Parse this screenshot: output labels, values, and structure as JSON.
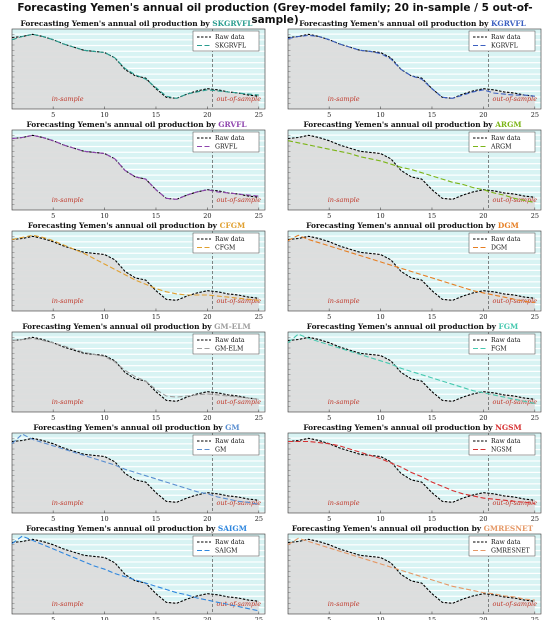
{
  "suptitle": "Forecasting Yemen's annual oil production (Grey-model family; 20 in-sample / 5 out-of-sample)",
  "colors": {
    "raw": "#000000",
    "fill": "#dcdcdc",
    "band": "#d8f3f3",
    "split": "#555555",
    "sample_text": "#c0392b"
  },
  "chart_data": [
    {
      "type": "line",
      "title_prefix": "Forecasting Yemen's annual oil production by ",
      "model": "SKGRVFL",
      "model_color": "#2a9d8f",
      "legend": [
        "Raw data",
        "SKGRVFL"
      ],
      "x": [
        1,
        2,
        3,
        4,
        5,
        6,
        7,
        8,
        9,
        10,
        11,
        12,
        13,
        14,
        15,
        16,
        17,
        18,
        19,
        20,
        21,
        22,
        23,
        24,
        25
      ],
      "raw": [
        9.2,
        9.3,
        9.5,
        9.3,
        9.0,
        8.6,
        8.3,
        8.0,
        7.9,
        7.8,
        7.3,
        6.2,
        5.6,
        5.4,
        4.4,
        3.6,
        3.5,
        3.9,
        4.2,
        4.4,
        4.3,
        4.1,
        4.0,
        3.8,
        3.7
      ],
      "model_values": [
        9.0,
        9.3,
        9.5,
        9.3,
        9.0,
        8.6,
        8.3,
        8.0,
        7.9,
        7.8,
        7.3,
        6.3,
        5.7,
        5.3,
        4.5,
        3.7,
        3.5,
        3.9,
        4.1,
        4.3,
        4.2,
        4.1,
        4.0,
        3.9,
        3.8
      ],
      "split": 20.5,
      "xlim": [
        1,
        25.6
      ],
      "ylim": [
        2.5,
        10
      ],
      "annotations": [
        "in-sample",
        "out-of-sample"
      ]
    },
    {
      "type": "line",
      "title_prefix": "Forecasting Yemen's annual oil production by ",
      "model": "KGRVFL",
      "model_color": "#3b5fc0",
      "legend": [
        "Raw data",
        "KGRVFL"
      ],
      "x": [
        1,
        2,
        3,
        4,
        5,
        6,
        7,
        8,
        9,
        10,
        11,
        12,
        13,
        14,
        15,
        16,
        17,
        18,
        19,
        20,
        21,
        22,
        23,
        24,
        25
      ],
      "raw": [
        9.2,
        9.3,
        9.5,
        9.3,
        9.0,
        8.6,
        8.3,
        8.0,
        7.9,
        7.8,
        7.3,
        6.2,
        5.6,
        5.4,
        4.4,
        3.6,
        3.5,
        3.9,
        4.2,
        4.4,
        4.3,
        4.1,
        4.0,
        3.8,
        3.7
      ],
      "model_values": [
        9.1,
        9.3,
        9.4,
        9.3,
        9.0,
        8.6,
        8.3,
        8.0,
        7.9,
        7.7,
        7.2,
        6.2,
        5.6,
        5.3,
        4.4,
        3.6,
        3.5,
        3.8,
        4.1,
        4.3,
        4.0,
        3.9,
        3.8,
        3.8,
        3.7
      ],
      "split": 20.5,
      "xlim": [
        1,
        25.6
      ],
      "ylim": [
        2.5,
        10
      ],
      "annotations": [
        "in-sample",
        "out-of-sample"
      ]
    },
    {
      "type": "line",
      "title_prefix": "Forecasting Yemen's annual oil production by ",
      "model": "GRVFL",
      "model_color": "#8e44ad",
      "legend": [
        "Raw data",
        "GRVFL"
      ],
      "x": [
        1,
        2,
        3,
        4,
        5,
        6,
        7,
        8,
        9,
        10,
        11,
        12,
        13,
        14,
        15,
        16,
        17,
        18,
        19,
        20,
        21,
        22,
        23,
        24,
        25
      ],
      "raw": [
        9.2,
        9.3,
        9.5,
        9.3,
        9.0,
        8.6,
        8.3,
        8.0,
        7.9,
        7.8,
        7.3,
        6.2,
        5.6,
        5.4,
        4.4,
        3.6,
        3.5,
        3.9,
        4.2,
        4.4,
        4.3,
        4.1,
        4.0,
        3.8,
        3.7
      ],
      "model_values": [
        9.2,
        9.3,
        9.5,
        9.3,
        9.0,
        8.6,
        8.3,
        8.0,
        7.9,
        7.8,
        7.3,
        6.2,
        5.6,
        5.4,
        4.4,
        3.6,
        3.5,
        3.9,
        4.2,
        4.4,
        4.2,
        4.1,
        4.0,
        3.9,
        3.8
      ],
      "split": 20.5,
      "xlim": [
        1,
        25.6
      ],
      "ylim": [
        2.5,
        10
      ],
      "annotations": [
        "in-sample",
        "out-of-sample"
      ]
    },
    {
      "type": "line",
      "title_prefix": "Forecasting Yemen's annual oil production by ",
      "model": "ARGM",
      "model_color": "#7cb518",
      "legend": [
        "Raw data",
        "ARGM"
      ],
      "x": [
        1,
        2,
        3,
        4,
        5,
        6,
        7,
        8,
        9,
        10,
        11,
        12,
        13,
        14,
        15,
        16,
        17,
        18,
        19,
        20,
        21,
        22,
        23,
        24,
        25
      ],
      "raw": [
        9.2,
        9.3,
        9.5,
        9.3,
        9.0,
        8.6,
        8.3,
        8.0,
        7.9,
        7.8,
        7.3,
        6.2,
        5.6,
        5.4,
        4.4,
        3.6,
        3.5,
        3.9,
        4.2,
        4.4,
        4.3,
        4.1,
        4.0,
        3.8,
        3.7
      ],
      "model_values": [
        9.0,
        8.8,
        8.6,
        8.4,
        8.2,
        8.0,
        7.8,
        7.5,
        7.3,
        7.1,
        6.8,
        6.5,
        6.3,
        6.0,
        5.7,
        5.4,
        5.1,
        4.9,
        4.6,
        4.4,
        4.1,
        3.9,
        3.6,
        3.4,
        3.2
      ],
      "split": 20.5,
      "xlim": [
        1,
        25.6
      ],
      "ylim": [
        2.5,
        10
      ],
      "annotations": [
        "in-sample",
        "out-of-sample"
      ]
    },
    {
      "type": "line",
      "title_prefix": "Forecasting Yemen's annual oil production by ",
      "model": "CFGM",
      "model_color": "#e0a030",
      "legend": [
        "Raw data",
        "CFGM"
      ],
      "x": [
        1,
        2,
        3,
        4,
        5,
        6,
        7,
        8,
        9,
        10,
        11,
        12,
        13,
        14,
        15,
        16,
        17,
        18,
        19,
        20,
        21,
        22,
        23,
        24,
        25
      ],
      "raw": [
        9.2,
        9.3,
        9.5,
        9.3,
        9.0,
        8.6,
        8.3,
        8.0,
        7.9,
        7.8,
        7.3,
        6.2,
        5.6,
        5.4,
        4.4,
        3.6,
        3.5,
        3.9,
        4.2,
        4.4,
        4.3,
        4.1,
        4.0,
        3.8,
        3.7
      ],
      "model_values": [
        9.2,
        9.4,
        9.6,
        9.4,
        9.1,
        8.7,
        8.3,
        7.9,
        7.4,
        6.9,
        6.4,
        5.9,
        5.4,
        5.0,
        4.6,
        4.3,
        4.1,
        4.0,
        4.0,
        4.0,
        3.9,
        3.8,
        3.7,
        3.6,
        3.5
      ],
      "split": 20.5,
      "xlim": [
        1,
        25.6
      ],
      "ylim": [
        2.5,
        10
      ],
      "annotations": [
        "in-sample",
        "out-of-sample"
      ]
    },
    {
      "type": "line",
      "title_prefix": "Forecasting Yemen's annual oil production by ",
      "model": "DGM",
      "model_color": "#e67e22",
      "legend": [
        "Raw data",
        "DGM"
      ],
      "x": [
        1,
        2,
        3,
        4,
        5,
        6,
        7,
        8,
        9,
        10,
        11,
        12,
        13,
        14,
        15,
        16,
        17,
        18,
        19,
        20,
        21,
        22,
        23,
        24,
        25
      ],
      "raw": [
        9.2,
        9.3,
        9.5,
        9.3,
        9.0,
        8.6,
        8.3,
        8.0,
        7.9,
        7.8,
        7.3,
        6.2,
        5.6,
        5.4,
        4.4,
        3.6,
        3.5,
        3.9,
        4.2,
        4.4,
        4.3,
        4.1,
        4.0,
        3.8,
        3.7
      ],
      "model_values": [
        9.1,
        9.6,
        9.2,
        8.9,
        8.6,
        8.3,
        8.0,
        7.7,
        7.4,
        7.1,
        6.8,
        6.5,
        6.2,
        5.9,
        5.6,
        5.3,
        5.0,
        4.7,
        4.4,
        4.2,
        4.0,
        3.8,
        3.6,
        3.4,
        3.3
      ],
      "split": 20.5,
      "xlim": [
        1,
        25.6
      ],
      "ylim": [
        2.5,
        10
      ],
      "annotations": [
        "in-sample",
        "out-of-sample"
      ]
    },
    {
      "type": "line",
      "title_prefix": "Forecasting Yemen's annual oil production by ",
      "model": "GM-ELM",
      "model_color": "#9e9e9e",
      "legend": [
        "Raw data",
        "GM-ELM"
      ],
      "x": [
        1,
        2,
        3,
        4,
        5,
        6,
        7,
        8,
        9,
        10,
        11,
        12,
        13,
        14,
        15,
        16,
        17,
        18,
        19,
        20,
        21,
        22,
        23,
        24,
        25
      ],
      "raw": [
        9.2,
        9.3,
        9.5,
        9.3,
        9.0,
        8.6,
        8.3,
        8.0,
        7.9,
        7.8,
        7.3,
        6.2,
        5.6,
        5.4,
        4.4,
        3.6,
        3.5,
        3.9,
        4.2,
        4.4,
        4.3,
        4.1,
        4.0,
        3.8,
        3.7
      ],
      "model_values": [
        9.2,
        9.3,
        9.4,
        9.2,
        9.0,
        8.7,
        8.4,
        8.1,
        7.9,
        7.7,
        7.2,
        6.4,
        5.8,
        5.4,
        4.6,
        4.0,
        3.9,
        4.0,
        4.1,
        4.2,
        4.1,
        4.0,
        3.9,
        3.8,
        3.7
      ],
      "split": 20.5,
      "xlim": [
        1,
        25.6
      ],
      "ylim": [
        2.5,
        10
      ],
      "annotations": [
        "in-sample",
        "out-of-sample"
      ]
    },
    {
      "type": "line",
      "title_prefix": "Forecasting Yemen's annual oil production by ",
      "model": "FGM",
      "model_color": "#48c9b0",
      "legend": [
        "Raw data",
        "FGM"
      ],
      "x": [
        1,
        2,
        3,
        4,
        5,
        6,
        7,
        8,
        9,
        10,
        11,
        12,
        13,
        14,
        15,
        16,
        17,
        18,
        19,
        20,
        21,
        22,
        23,
        24,
        25
      ],
      "raw": [
        9.2,
        9.3,
        9.5,
        9.3,
        9.0,
        8.6,
        8.3,
        8.0,
        7.9,
        7.8,
        7.3,
        6.2,
        5.6,
        5.4,
        4.4,
        3.6,
        3.5,
        3.9,
        4.2,
        4.4,
        4.3,
        4.1,
        4.0,
        3.8,
        3.7
      ],
      "model_values": [
        9.0,
        9.8,
        9.4,
        9.1,
        8.8,
        8.5,
        8.2,
        7.9,
        7.6,
        7.3,
        7.0,
        6.6,
        6.3,
        6.0,
        5.7,
        5.4,
        5.1,
        4.8,
        4.5,
        4.3,
        4.1,
        3.9,
        3.7,
        3.5,
        3.3
      ],
      "split": 20.5,
      "xlim": [
        1,
        25.6
      ],
      "ylim": [
        2.5,
        10
      ],
      "annotations": [
        "in-sample",
        "out-of-sample"
      ]
    },
    {
      "type": "line",
      "title_prefix": "Forecasting Yemen's annual oil production by ",
      "model": "GM",
      "model_color": "#5a8ed0",
      "legend": [
        "Raw data",
        "GM"
      ],
      "x": [
        1,
        2,
        3,
        4,
        5,
        6,
        7,
        8,
        9,
        10,
        11,
        12,
        13,
        14,
        15,
        16,
        17,
        18,
        19,
        20,
        21,
        22,
        23,
        24,
        25
      ],
      "raw": [
        9.2,
        9.3,
        9.5,
        9.3,
        9.0,
        8.6,
        8.3,
        8.0,
        7.9,
        7.8,
        7.3,
        6.2,
        5.6,
        5.4,
        4.4,
        3.6,
        3.5,
        3.9,
        4.2,
        4.4,
        4.3,
        4.1,
        4.0,
        3.8,
        3.7
      ],
      "model_values": [
        9.0,
        9.9,
        9.4,
        9.1,
        8.8,
        8.5,
        8.2,
        7.9,
        7.6,
        7.3,
        7.0,
        6.6,
        6.3,
        6.0,
        5.7,
        5.4,
        5.1,
        4.8,
        4.5,
        4.3,
        4.0,
        3.8,
        3.6,
        3.5,
        3.3
      ],
      "split": 20.5,
      "xlim": [
        1,
        25.6
      ],
      "ylim": [
        2.5,
        10
      ],
      "annotations": [
        "in-sample",
        "out-of-sample"
      ]
    },
    {
      "type": "line",
      "title_prefix": "Forecasting Yemen's annual oil production by ",
      "model": "NGSM",
      "model_color": "#d63031",
      "legend": [
        "Raw data",
        "NGSM"
      ],
      "x": [
        1,
        2,
        3,
        4,
        5,
        6,
        7,
        8,
        9,
        10,
        11,
        12,
        13,
        14,
        15,
        16,
        17,
        18,
        19,
        20,
        21,
        22,
        23,
        24,
        25
      ],
      "raw": [
        9.2,
        9.3,
        9.5,
        9.3,
        9.0,
        8.6,
        8.3,
        8.0,
        7.9,
        7.8,
        7.3,
        6.2,
        5.6,
        5.4,
        4.4,
        3.6,
        3.5,
        3.9,
        4.2,
        4.4,
        4.3,
        4.1,
        4.0,
        3.8,
        3.7
      ],
      "model_values": [
        9.2,
        9.2,
        9.2,
        9.1,
        9.0,
        8.8,
        8.5,
        8.2,
        7.9,
        7.6,
        7.2,
        6.8,
        6.3,
        5.9,
        5.4,
        5.0,
        4.6,
        4.3,
        4.1,
        3.9,
        3.8,
        3.7,
        3.6,
        3.5,
        3.4
      ],
      "split": 20.5,
      "xlim": [
        1,
        25.6
      ],
      "ylim": [
        2.5,
        10
      ],
      "annotations": [
        "in-sample",
        "out-of-sample"
      ]
    },
    {
      "type": "line",
      "title_prefix": "Forecasting Yemen's annual oil production by ",
      "model": "SAIGM",
      "model_color": "#2e86de",
      "legend": [
        "Raw data",
        "SAIGM"
      ],
      "x": [
        1,
        2,
        3,
        4,
        5,
        6,
        7,
        8,
        9,
        10,
        11,
        12,
        13,
        14,
        15,
        16,
        17,
        18,
        19,
        20,
        21,
        22,
        23,
        24,
        25
      ],
      "raw": [
        9.2,
        9.3,
        9.5,
        9.3,
        9.0,
        8.6,
        8.3,
        8.0,
        7.9,
        7.8,
        7.3,
        6.2,
        5.6,
        5.4,
        4.4,
        3.6,
        3.5,
        3.9,
        4.2,
        4.4,
        4.3,
        4.1,
        4.0,
        3.8,
        3.7
      ],
      "model_values": [
        9.1,
        9.8,
        9.4,
        9.0,
        8.6,
        8.2,
        7.8,
        7.4,
        7.0,
        6.7,
        6.3,
        6.0,
        5.7,
        5.4,
        5.1,
        4.8,
        4.5,
        4.3,
        4.0,
        3.8,
        3.6,
        3.4,
        3.2,
        3.0,
        2.8
      ],
      "split": 20.5,
      "xlim": [
        1,
        25.6
      ],
      "ylim": [
        2.5,
        10
      ],
      "annotations": [
        "in-sample",
        "out-of-sample"
      ]
    },
    {
      "type": "line",
      "title_prefix": "Forecasting Yemen's annual oil production by ",
      "model": "GMRESNET",
      "model_color": "#e59866",
      "legend": [
        "Raw data",
        "GMRESNET"
      ],
      "x": [
        1,
        2,
        3,
        4,
        5,
        6,
        7,
        8,
        9,
        10,
        11,
        12,
        13,
        14,
        15,
        16,
        17,
        18,
        19,
        20,
        21,
        22,
        23,
        24,
        25
      ],
      "raw": [
        9.2,
        9.3,
        9.5,
        9.3,
        9.0,
        8.6,
        8.3,
        8.0,
        7.9,
        7.8,
        7.3,
        6.2,
        5.6,
        5.4,
        4.4,
        3.6,
        3.5,
        3.9,
        4.2,
        4.4,
        4.3,
        4.1,
        4.0,
        3.8,
        3.7
      ],
      "model_values": [
        9.0,
        9.6,
        9.3,
        9.0,
        8.7,
        8.4,
        8.1,
        7.8,
        7.5,
        7.2,
        6.9,
        6.6,
        6.3,
        6.0,
        5.7,
        5.4,
        5.1,
        4.9,
        4.7,
        4.5,
        4.4,
        4.2,
        4.1,
        3.9,
        3.8
      ],
      "split": 20.5,
      "xlim": [
        1,
        25.6
      ],
      "ylim": [
        2.5,
        10
      ],
      "annotations": [
        "in-sample",
        "out-of-sample"
      ]
    }
  ],
  "x_ticks": [
    5,
    10,
    15,
    20,
    25
  ]
}
